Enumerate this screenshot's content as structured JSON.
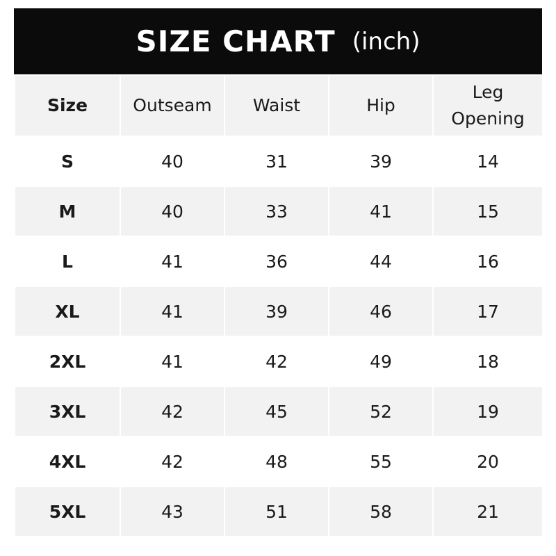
{
  "title": {
    "main": "SIZE CHART",
    "unit": "(inch)"
  },
  "colors": {
    "header_bg": "#0b0b0b",
    "stripe": "#f2f2f2"
  },
  "columns": [
    "Size",
    "Outseam",
    "Waist",
    "Hip",
    "Leg Opening"
  ],
  "rows": [
    [
      "S",
      "40",
      "31",
      "39",
      "14"
    ],
    [
      "M",
      "40",
      "33",
      "41",
      "15"
    ],
    [
      "L",
      "41",
      "36",
      "44",
      "16"
    ],
    [
      "XL",
      "41",
      "39",
      "46",
      "17"
    ],
    [
      "2XL",
      "41",
      "42",
      "49",
      "18"
    ],
    [
      "3XL",
      "42",
      "45",
      "52",
      "19"
    ],
    [
      "4XL",
      "42",
      "48",
      "55",
      "20"
    ],
    [
      "5XL",
      "43",
      "51",
      "58",
      "21"
    ]
  ]
}
